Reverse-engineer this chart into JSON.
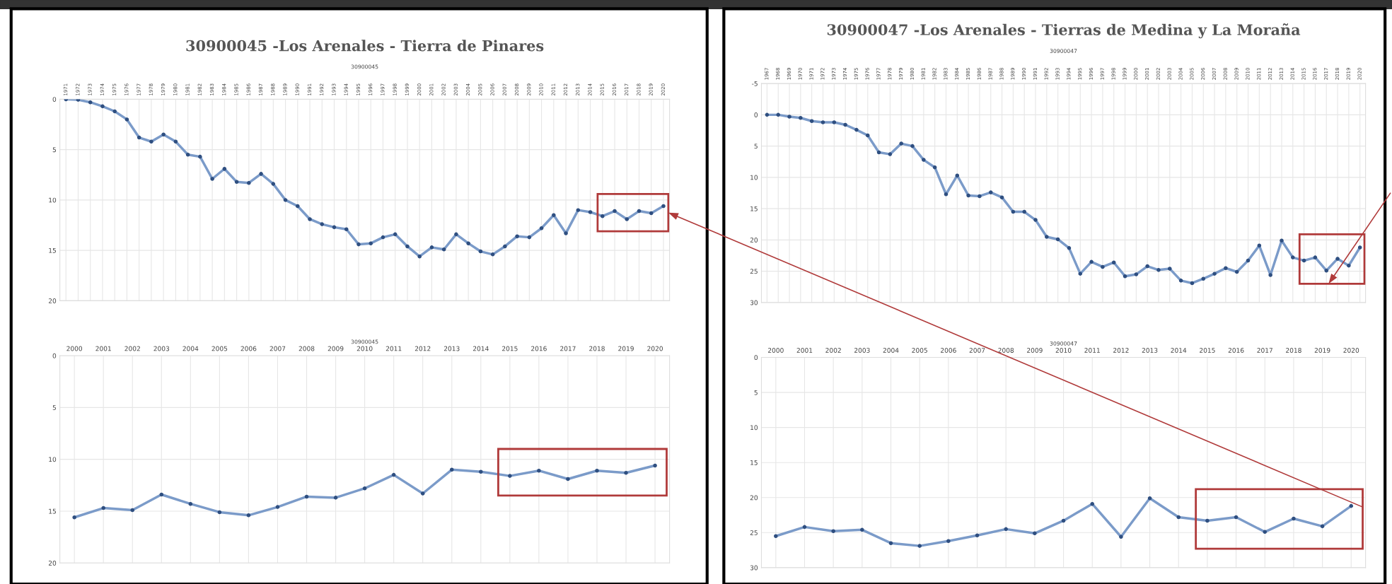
{
  "chart_data": [
    {
      "type": "line",
      "title": "30900045 -Los Arenales - Tierra de Pinares",
      "subtitle": "30900045",
      "categories": [
        "1971",
        "1972",
        "1973",
        "1974",
        "1975",
        "1976",
        "1977",
        "1978",
        "1979",
        "1980",
        "1981",
        "1982",
        "1983",
        "1984",
        "1985",
        "1986",
        "1987",
        "1988",
        "1989",
        "1990",
        "1991",
        "1992",
        "1993",
        "1994",
        "1995",
        "1996",
        "1997",
        "1998",
        "1999",
        "2000",
        "2001",
        "2002",
        "2003",
        "2004",
        "2005",
        "2006",
        "2007",
        "2008",
        "2009",
        "2010",
        "2011",
        "2012",
        "2013",
        "2014",
        "2015",
        "2016",
        "2017",
        "2018",
        "2019",
        "2020"
      ],
      "values": [
        0,
        0.05,
        0.3,
        0.7,
        1.2,
        2.0,
        3.8,
        4.2,
        3.5,
        4.2,
        5.5,
        5.7,
        7.9,
        6.9,
        8.2,
        8.3,
        7.4,
        8.4,
        10.0,
        10.6,
        11.9,
        12.4,
        12.7,
        12.9,
        14.4,
        14.3,
        13.7,
        13.4,
        14.6,
        15.6,
        14.7,
        14.9,
        13.4,
        14.3,
        15.1,
        15.4,
        14.6,
        13.6,
        13.7,
        12.8,
        11.5,
        13.3,
        11.0,
        11.2,
        11.6,
        11.1,
        11.9,
        11.1,
        11.3,
        10.6
      ],
      "color": "#7b9bc9",
      "marker": "circle",
      "ylim": [
        20,
        0
      ],
      "yticks": [
        0,
        5,
        10,
        15,
        20
      ],
      "grid": true
    },
    {
      "type": "line",
      "subtitle": "30900045",
      "categories": [
        "2000",
        "2001",
        "2002",
        "2003",
        "2004",
        "2005",
        "2006",
        "2007",
        "2008",
        "2009",
        "2010",
        "2011",
        "2012",
        "2013",
        "2014",
        "2015",
        "2016",
        "2017",
        "2018",
        "2019",
        "2020"
      ],
      "values": [
        15.6,
        14.7,
        14.9,
        13.4,
        14.3,
        15.1,
        15.4,
        14.6,
        13.6,
        13.7,
        12.8,
        11.5,
        13.3,
        11.0,
        11.2,
        11.6,
        11.1,
        11.9,
        11.1,
        11.3,
        10.6
      ],
      "color": "#7b9bc9",
      "marker": "circle",
      "ylim": [
        20,
        0
      ],
      "yticks": [
        0,
        5,
        10,
        15,
        20
      ],
      "grid": true
    },
    {
      "type": "line",
      "title": "30900047 -Los Arenales - Tierras de Medina y La Moraña",
      "subtitle": "30900047",
      "categories": [
        "1967",
        "1968",
        "1969",
        "1970",
        "1971",
        "1972",
        "1973",
        "1974",
        "1975",
        "1976",
        "1977",
        "1978",
        "1979",
        "1980",
        "1981",
        "1982",
        "1983",
        "1984",
        "1985",
        "1986",
        "1987",
        "1988",
        "1989",
        "1990",
        "1991",
        "1992",
        "1993",
        "1994",
        "1995",
        "1996",
        "1997",
        "1998",
        "1999",
        "2000",
        "2001",
        "2002",
        "2003",
        "2004",
        "2005",
        "2006",
        "2007",
        "2008",
        "2009",
        "2010",
        "2011",
        "2012",
        "2013",
        "2014",
        "2015",
        "2016",
        "2017",
        "2018",
        "2019",
        "2020"
      ],
      "values": [
        0,
        0,
        0.3,
        0.5,
        1.0,
        1.2,
        1.2,
        1.6,
        2.4,
        3.3,
        6.0,
        6.3,
        4.6,
        5.0,
        7.2,
        8.4,
        12.7,
        9.7,
        12.9,
        13.0,
        12.4,
        13.2,
        15.5,
        15.5,
        16.8,
        19.5,
        19.9,
        21.3,
        25.4,
        23.5,
        24.3,
        23.6,
        25.8,
        25.5,
        24.2,
        24.8,
        24.6,
        26.5,
        26.9,
        26.2,
        25.4,
        24.5,
        25.1,
        23.3,
        20.9,
        25.6,
        20.1,
        22.8,
        23.3,
        22.8,
        24.9,
        23.0,
        24.1,
        21.2
      ],
      "color": "#7b9bc9",
      "marker": "circle",
      "ylim": [
        30,
        -5
      ],
      "yticks": [
        -5,
        0,
        5,
        10,
        15,
        20,
        25,
        30
      ],
      "grid": true
    },
    {
      "type": "line",
      "subtitle": "30900047",
      "categories": [
        "2000",
        "2001",
        "2002",
        "2003",
        "2004",
        "2005",
        "2006",
        "2007",
        "2008",
        "2009",
        "2010",
        "2011",
        "2012",
        "2013",
        "2014",
        "2015",
        "2016",
        "2017",
        "2018",
        "2019",
        "2020"
      ],
      "values": [
        25.5,
        24.2,
        24.8,
        24.6,
        26.5,
        26.9,
        26.2,
        25.4,
        24.5,
        25.1,
        23.3,
        20.9,
        25.6,
        20.1,
        22.8,
        23.3,
        22.8,
        24.9,
        23.0,
        24.1,
        21.2
      ],
      "color": "#7b9bc9",
      "marker": "circle",
      "ylim": [
        30,
        0
      ],
      "yticks": [
        0,
        5,
        10,
        15,
        20,
        25,
        30
      ],
      "grid": true
    }
  ]
}
